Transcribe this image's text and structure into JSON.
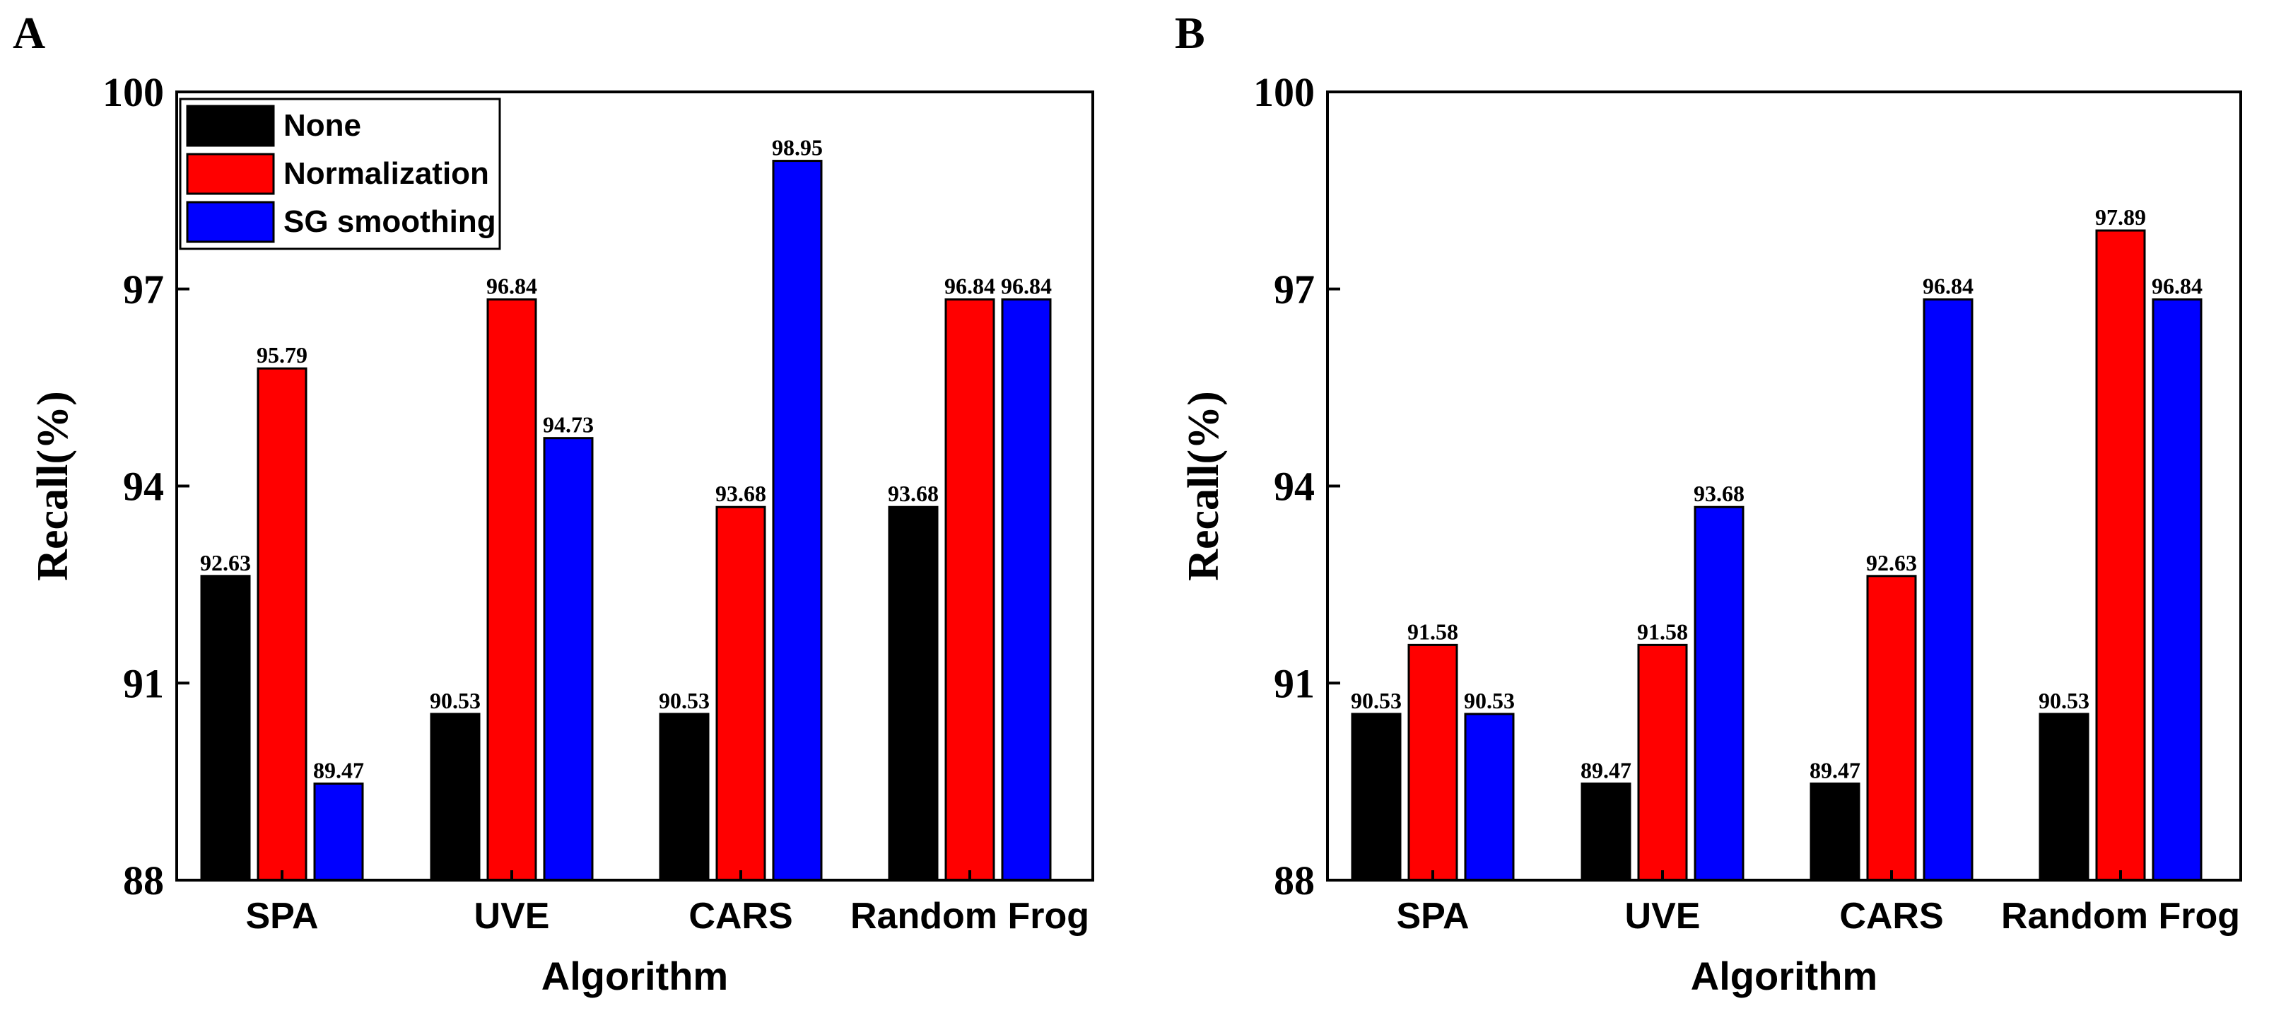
{
  "colors": {
    "None": "#000000",
    "Normalization": "#ff0000",
    "SG smoothing": "#0000ff",
    "axis": "#000000"
  },
  "chart_data": [
    {
      "type": "bar",
      "panel_label": "A",
      "xlabel": "Algorithm",
      "ylabel": "Recall(%)",
      "ylim": [
        88,
        100
      ],
      "yticks": [
        88,
        91,
        94,
        97,
        100
      ],
      "categories": [
        "SPA",
        "UVE",
        "CARS",
        "Random Frog"
      ],
      "legend_position": "top-left",
      "series": [
        {
          "name": "None",
          "values": [
            92.63,
            90.53,
            90.53,
            93.68
          ]
        },
        {
          "name": "Normalization",
          "values": [
            95.79,
            96.84,
            93.68,
            96.84
          ]
        },
        {
          "name": "SG smoothing",
          "values": [
            89.47,
            94.73,
            98.95,
            96.84
          ]
        }
      ]
    },
    {
      "type": "bar",
      "panel_label": "B",
      "xlabel": "Algorithm",
      "ylabel": "Recall(%)",
      "ylim": [
        88,
        100
      ],
      "yticks": [
        88,
        91,
        94,
        97,
        100
      ],
      "categories": [
        "SPA",
        "UVE",
        "CARS",
        "Random Frog"
      ],
      "legend_position": "none",
      "series": [
        {
          "name": "None",
          "values": [
            90.53,
            89.47,
            89.47,
            90.53
          ]
        },
        {
          "name": "Normalization",
          "values": [
            91.58,
            91.58,
            92.63,
            97.89
          ]
        },
        {
          "name": "SG smoothing",
          "values": [
            90.53,
            93.68,
            96.84,
            96.84
          ]
        }
      ]
    }
  ]
}
